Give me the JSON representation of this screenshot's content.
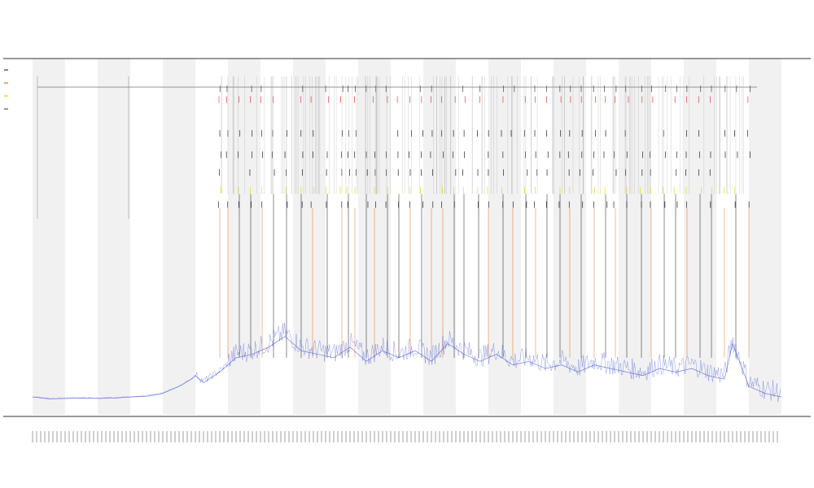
{
  "chart_data": {
    "type": "line",
    "title": "",
    "subtitle_1": "",
    "subtitle_2": "",
    "xlabel": "",
    "ylabel": "",
    "grid": false,
    "legend_position": "left",
    "legend": [
      {
        "name": "",
        "color": "#333333"
      },
      {
        "name": "",
        "color": "#e06a3a"
      },
      {
        "name": "",
        "color": "#d4d400"
      },
      {
        "name": "",
        "color": "#555555"
      }
    ],
    "colors": {
      "primary_series": "#3a4bd8",
      "event_orange": "#e8782c",
      "event_yellow": "#e0e000",
      "event_black": "#222222",
      "event_red": "#e04040",
      "band": "#f1f1f1",
      "axis": "#333333"
    },
    "xlim": [
      0,
      920
    ],
    "ylim": [
      0,
      1
    ],
    "bands": [
      [
        0,
        40
      ],
      [
        80,
        120
      ],
      [
        160,
        200
      ],
      [
        240,
        280
      ],
      [
        320,
        360
      ],
      [
        400,
        440
      ],
      [
        480,
        520
      ],
      [
        560,
        600
      ],
      [
        640,
        680
      ],
      [
        720,
        760
      ],
      [
        800,
        840
      ],
      [
        880,
        920
      ]
    ],
    "event_rows": [
      {
        "name": "",
        "y": 0.915,
        "color": "#444444"
      },
      {
        "name": "",
        "y": 0.885,
        "color": "#e04040"
      },
      {
        "name": "",
        "y": 0.79,
        "color": "#222222"
      },
      {
        "name": "",
        "y": 0.73,
        "color": "#222222"
      },
      {
        "name": "",
        "y": 0.68,
        "color": "#222222"
      },
      {
        "name": "",
        "y": 0.63,
        "color": "#e0e000"
      },
      {
        "name": "",
        "y": 0.59,
        "color": "#222222"
      }
    ],
    "baseline_y": 0.92,
    "primary_series": {
      "name": "",
      "points": [
        [
          0,
          0.05
        ],
        [
          20,
          0.045
        ],
        [
          40,
          0.046
        ],
        [
          60,
          0.047
        ],
        [
          80,
          0.046
        ],
        [
          100,
          0.047
        ],
        [
          120,
          0.05
        ],
        [
          140,
          0.052
        ],
        [
          160,
          0.06
        ],
        [
          180,
          0.08
        ],
        [
          195,
          0.1
        ],
        [
          200,
          0.11
        ],
        [
          210,
          0.09
        ],
        [
          230,
          0.12
        ],
        [
          250,
          0.16
        ],
        [
          270,
          0.17
        ],
        [
          290,
          0.19
        ],
        [
          310,
          0.22
        ],
        [
          330,
          0.18
        ],
        [
          350,
          0.17
        ],
        [
          370,
          0.16
        ],
        [
          390,
          0.19
        ],
        [
          410,
          0.15
        ],
        [
          430,
          0.18
        ],
        [
          450,
          0.16
        ],
        [
          470,
          0.18
        ],
        [
          490,
          0.15
        ],
        [
          510,
          0.2
        ],
        [
          530,
          0.17
        ],
        [
          550,
          0.15
        ],
        [
          570,
          0.17
        ],
        [
          590,
          0.14
        ],
        [
          610,
          0.15
        ],
        [
          630,
          0.13
        ],
        [
          650,
          0.14
        ],
        [
          670,
          0.12
        ],
        [
          690,
          0.14
        ],
        [
          710,
          0.13
        ],
        [
          730,
          0.12
        ],
        [
          750,
          0.11
        ],
        [
          770,
          0.13
        ],
        [
          790,
          0.12
        ],
        [
          810,
          0.13
        ],
        [
          830,
          0.11
        ],
        [
          850,
          0.1
        ],
        [
          860,
          0.2
        ],
        [
          870,
          0.14
        ],
        [
          880,
          0.08
        ],
        [
          900,
          0.06
        ],
        [
          920,
          0.05
        ]
      ]
    },
    "events": [
      {
        "x": 230,
        "type": "orange"
      },
      {
        "x": 240,
        "type": "orange"
      },
      {
        "x": 254,
        "type": "black"
      },
      {
        "x": 268,
        "type": "black"
      },
      {
        "x": 282,
        "type": "orange"
      },
      {
        "x": 296,
        "type": "black"
      },
      {
        "x": 312,
        "type": "black"
      },
      {
        "x": 330,
        "type": "black"
      },
      {
        "x": 344,
        "type": "orange"
      },
      {
        "x": 362,
        "type": "black"
      },
      {
        "x": 380,
        "type": "orange"
      },
      {
        "x": 388,
        "type": "black"
      },
      {
        "x": 396,
        "type": "orange"
      },
      {
        "x": 410,
        "type": "black"
      },
      {
        "x": 420,
        "type": "orange"
      },
      {
        "x": 436,
        "type": "black"
      },
      {
        "x": 450,
        "type": "black"
      },
      {
        "x": 464,
        "type": "orange"
      },
      {
        "x": 478,
        "type": "black"
      },
      {
        "x": 490,
        "type": "orange"
      },
      {
        "x": 504,
        "type": "orange"
      },
      {
        "x": 518,
        "type": "black"
      },
      {
        "x": 530,
        "type": "black"
      },
      {
        "x": 548,
        "type": "black"
      },
      {
        "x": 560,
        "type": "orange"
      },
      {
        "x": 578,
        "type": "black"
      },
      {
        "x": 590,
        "type": "orange"
      },
      {
        "x": 606,
        "type": "black"
      },
      {
        "x": 618,
        "type": "orange"
      },
      {
        "x": 632,
        "type": "black"
      },
      {
        "x": 648,
        "type": "black"
      },
      {
        "x": 660,
        "type": "orange"
      },
      {
        "x": 674,
        "type": "black"
      },
      {
        "x": 690,
        "type": "orange"
      },
      {
        "x": 704,
        "type": "black"
      },
      {
        "x": 716,
        "type": "orange"
      },
      {
        "x": 730,
        "type": "black"
      },
      {
        "x": 748,
        "type": "black"
      },
      {
        "x": 760,
        "type": "orange"
      },
      {
        "x": 776,
        "type": "black"
      },
      {
        "x": 790,
        "type": "black"
      },
      {
        "x": 804,
        "type": "orange"
      },
      {
        "x": 820,
        "type": "black"
      },
      {
        "x": 834,
        "type": "black"
      },
      {
        "x": 850,
        "type": "orange"
      },
      {
        "x": 864,
        "type": "black"
      },
      {
        "x": 880,
        "type": "orange"
      }
    ]
  }
}
